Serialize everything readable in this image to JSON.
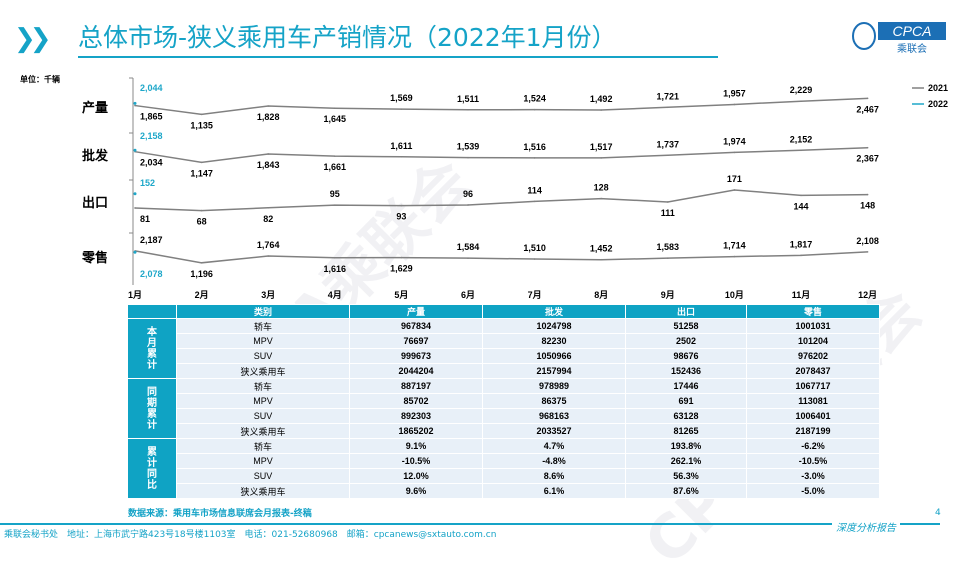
{
  "header": {
    "title": "总体市场-狭义乘用车产销情况（2022年1月份）",
    "logo_text": "CPCA",
    "logo_sub": "乘联会",
    "logo_small": "CPCA"
  },
  "unit": "单位：千辆",
  "watermark": "CPCA乘联会",
  "colors": {
    "accent": "#15a3c7",
    "series_2021": "#808080",
    "series_2022": "#1ea7c9",
    "table_header": "#0fa3c4",
    "table_row": "#e8f0f8"
  },
  "chart_data": {
    "type": "line",
    "categories": [
      "1月",
      "2月",
      "3月",
      "4月",
      "5月",
      "6月",
      "7月",
      "8月",
      "9月",
      "10月",
      "11月",
      "12月"
    ],
    "legend": [
      "2021",
      "2022"
    ],
    "legend_position": "right",
    "panels": [
      {
        "label": "产量",
        "series": [
          {
            "name": "2021",
            "values": [
              1865,
              1135,
              1828,
              1645,
              1569,
              1511,
              1524,
              1492,
              1721,
              1957,
              2229,
              2467
            ]
          },
          {
            "name": "2022",
            "values": [
              2044
            ]
          }
        ]
      },
      {
        "label": "批发",
        "series": [
          {
            "name": "2021",
            "values": [
              2034,
              1147,
              1843,
              1661,
              1611,
              1539,
              1516,
              1517,
              1737,
              1974,
              2152,
              2367
            ]
          },
          {
            "name": "2022",
            "values": [
              2158
            ]
          }
        ]
      },
      {
        "label": "出口",
        "series": [
          {
            "name": "2021",
            "values": [
              81,
              68,
              82,
              95,
              93,
              96,
              114,
              128,
              111,
              171,
              144,
              148
            ]
          },
          {
            "name": "2022",
            "values": [
              152
            ]
          }
        ]
      },
      {
        "label": "零售",
        "series": [
          {
            "name": "2021",
            "values": [
              2187,
              1196,
              1764,
              1616,
              1629,
              1584,
              1510,
              1452,
              1583,
              1714,
              1817,
              2108
            ]
          },
          {
            "name": "2022",
            "values": [
              2078
            ]
          }
        ]
      }
    ]
  },
  "table": {
    "headers": [
      "",
      "类别",
      "产量",
      "批发",
      "出口",
      "零售"
    ],
    "groups": [
      {
        "label": "本月累计",
        "rows": [
          [
            "轿车",
            "967834",
            "1024798",
            "51258",
            "1001031"
          ],
          [
            "MPV",
            "76697",
            "82230",
            "2502",
            "101204"
          ],
          [
            "SUV",
            "999673",
            "1050966",
            "98676",
            "976202"
          ],
          [
            "狭义乘用车",
            "2044204",
            "2157994",
            "152436",
            "2078437"
          ]
        ]
      },
      {
        "label": "同期累计",
        "rows": [
          [
            "轿车",
            "887197",
            "978989",
            "17446",
            "1067717"
          ],
          [
            "MPV",
            "85702",
            "86375",
            "691",
            "113081"
          ],
          [
            "SUV",
            "892303",
            "968163",
            "63128",
            "1006401"
          ],
          [
            "狭义乘用车",
            "1865202",
            "2033527",
            "81265",
            "2187199"
          ]
        ]
      },
      {
        "label": "累计同比",
        "rows": [
          [
            "轿车",
            "9.1%",
            "4.7%",
            "193.8%",
            "-6.2%"
          ],
          [
            "MPV",
            "-10.5%",
            "-4.8%",
            "262.1%",
            "-10.5%"
          ],
          [
            "SUV",
            "12.0%",
            "8.6%",
            "56.3%",
            "-3.0%"
          ],
          [
            "狭义乘用车",
            "9.6%",
            "6.1%",
            "87.6%",
            "-5.0%"
          ]
        ]
      }
    ]
  },
  "source": "数据来源：乘用车市场信息联席会月报表-终稿",
  "footer": "乘联会秘书处　地址：上海市武宁路423号18号楼1103室　电话：021-52680968　邮箱：cpcanews@sxtauto.com.cn",
  "report_label": "深度分析报告",
  "page_number": "4"
}
